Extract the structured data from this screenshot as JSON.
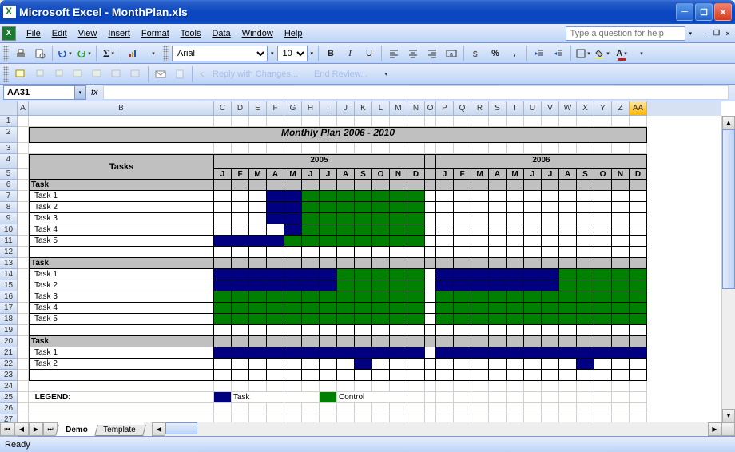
{
  "window": {
    "title": "Microsoft Excel - MonthPlan.xls"
  },
  "menu": {
    "items": [
      "File",
      "Edit",
      "View",
      "Insert",
      "Format",
      "Tools",
      "Data",
      "Window",
      "Help"
    ],
    "help_placeholder": "Type a question for help"
  },
  "formatting": {
    "font_name": "Arial",
    "font_size": "10"
  },
  "review_toolbar": {
    "reply": "Reply with Changes...",
    "end": "End Review..."
  },
  "namebox": "AA31",
  "fx": "fx",
  "columns": {
    "letters": [
      "A",
      "B",
      "C",
      "D",
      "E",
      "F",
      "G",
      "H",
      "I",
      "J",
      "K",
      "L",
      "M",
      "N",
      "O",
      "P",
      "Q",
      "R",
      "S",
      "T",
      "U",
      "V",
      "W",
      "X",
      "Y",
      "Z",
      "AA"
    ],
    "widths": [
      14,
      232,
      22,
      22,
      22,
      22,
      22,
      22,
      22,
      22,
      22,
      22,
      22,
      22,
      14,
      22,
      22,
      22,
      22,
      22,
      22,
      22,
      22,
      22,
      22,
      22,
      22
    ],
    "active_index": 26
  },
  "rows": {
    "count": 28
  },
  "sheet": {
    "title": "Monthly Plan 2006 - 2010",
    "tasks_header": "Tasks",
    "year1": "2005",
    "year2": "2006",
    "months": [
      "J",
      "F",
      "M",
      "A",
      "M",
      "J",
      "J",
      "A",
      "S",
      "O",
      "N",
      "D"
    ],
    "groups": [
      {
        "header": "Task",
        "rows": [
          {
            "label": "Task 1",
            "cells": [
              "",
              "",
              "",
              "b",
              "b",
              "g",
              "g",
              "g",
              "g",
              "g",
              "g",
              "g",
              "",
              "",
              "",
              "",
              "",
              "",
              "",
              "",
              "",
              "",
              "",
              ""
            ]
          },
          {
            "label": "Task 2",
            "cells": [
              "",
              "",
              "",
              "b",
              "b",
              "g",
              "g",
              "g",
              "g",
              "g",
              "g",
              "g",
              "",
              "",
              "",
              "",
              "",
              "",
              "",
              "",
              "",
              "",
              "",
              ""
            ]
          },
          {
            "label": "Task 3",
            "cells": [
              "",
              "",
              "",
              "b",
              "b",
              "g",
              "g",
              "g",
              "g",
              "g",
              "g",
              "g",
              "",
              "",
              "",
              "",
              "",
              "",
              "",
              "",
              "",
              "",
              "",
              ""
            ]
          },
          {
            "label": "Task 4",
            "cells": [
              "",
              "",
              "",
              "",
              "b",
              "g",
              "g",
              "g",
              "g",
              "g",
              "g",
              "g",
              "",
              "",
              "",
              "",
              "",
              "",
              "",
              "",
              "",
              "",
              "",
              ""
            ]
          },
          {
            "label": "Task 5",
            "cells": [
              "b",
              "b",
              "b",
              "b",
              "g",
              "g",
              "g",
              "g",
              "g",
              "g",
              "g",
              "g",
              "",
              "",
              "",
              "",
              "",
              "",
              "",
              "",
              "",
              "",
              "",
              ""
            ]
          }
        ]
      },
      {
        "header": "Task",
        "rows": [
          {
            "label": "Task 1",
            "cells": [
              "b",
              "b",
              "b",
              "b",
              "b",
              "b",
              "b",
              "g",
              "g",
              "g",
              "g",
              "g",
              "b",
              "b",
              "b",
              "b",
              "b",
              "b",
              "b",
              "g",
              "g",
              "g",
              "g",
              "g"
            ]
          },
          {
            "label": "Task 2",
            "cells": [
              "b",
              "b",
              "b",
              "b",
              "b",
              "b",
              "b",
              "g",
              "g",
              "g",
              "g",
              "g",
              "b",
              "b",
              "b",
              "b",
              "b",
              "b",
              "b",
              "g",
              "g",
              "g",
              "g",
              "g"
            ]
          },
          {
            "label": "Task 3",
            "cells": [
              "g",
              "g",
              "g",
              "g",
              "g",
              "g",
              "g",
              "g",
              "g",
              "g",
              "g",
              "g",
              "g",
              "g",
              "g",
              "g",
              "g",
              "g",
              "g",
              "g",
              "g",
              "g",
              "g",
              "g"
            ]
          },
          {
            "label": "Task 4",
            "cells": [
              "g",
              "g",
              "g",
              "g",
              "g",
              "g",
              "g",
              "g",
              "g",
              "g",
              "g",
              "g",
              "g",
              "g",
              "g",
              "g",
              "g",
              "g",
              "g",
              "g",
              "g",
              "g",
              "g",
              "g"
            ]
          },
          {
            "label": "Task 5",
            "cells": [
              "g",
              "g",
              "g",
              "g",
              "g",
              "g",
              "g",
              "g",
              "g",
              "g",
              "g",
              "g",
              "g",
              "g",
              "g",
              "g",
              "g",
              "g",
              "g",
              "g",
              "g",
              "g",
              "g",
              "g"
            ]
          }
        ]
      },
      {
        "header": "Task",
        "rows": [
          {
            "label": "Task 1",
            "cells": [
              "b",
              "b",
              "b",
              "b",
              "b",
              "b",
              "b",
              "b",
              "b",
              "b",
              "b",
              "b",
              "b",
              "b",
              "b",
              "b",
              "b",
              "b",
              "b",
              "b",
              "b",
              "b",
              "b",
              "b"
            ]
          },
          {
            "label": "Task 2",
            "cells": [
              "",
              "",
              "",
              "",
              "",
              "",
              "",
              "",
              "b",
              "",
              "",
              "",
              "",
              "",
              "",
              "",
              "",
              "",
              "",
              "",
              "b",
              "",
              "",
              ""
            ]
          }
        ]
      }
    ],
    "legend": {
      "label": "LEGEND:",
      "task": "Task",
      "control": "Control"
    },
    "colors": {
      "task": "#000080",
      "control": "#008000",
      "header_bg": "#c0c0c0"
    }
  },
  "tabs": {
    "active": "Demo",
    "other": "Template"
  },
  "status": "Ready"
}
